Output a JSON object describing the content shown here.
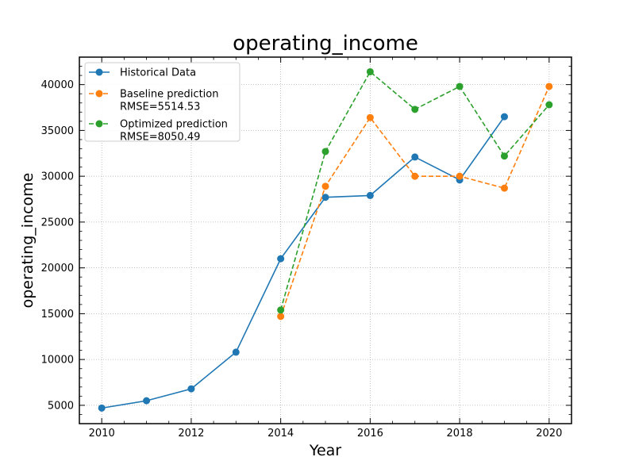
{
  "chart_data": {
    "type": "line",
    "title": "operating_income",
    "xlabel": "Year",
    "ylabel": "operating_income",
    "xlim": [
      2009.5,
      2020.5
    ],
    "ylim": [
      3000,
      43000
    ],
    "xticks": [
      2010,
      2012,
      2014,
      2016,
      2018,
      2020
    ],
    "yticks": [
      5000,
      10000,
      15000,
      20000,
      25000,
      30000,
      35000,
      40000
    ],
    "grid": true,
    "legend_position": "top-left",
    "series": [
      {
        "name": "Historical Data",
        "style": "solid",
        "color": "#1f77b4",
        "x": [
          2010,
          2011,
          2012,
          2013,
          2014,
          2015,
          2016,
          2017,
          2018,
          2019
        ],
        "y": [
          4700,
          5500,
          6800,
          10800,
          21000,
          27700,
          27900,
          32100,
          29600,
          36500
        ]
      },
      {
        "name": "Baseline prediction",
        "legend_lines": [
          "Baseline prediction",
          "RMSE=5514.53"
        ],
        "style": "dashed",
        "color": "#ff7f0e",
        "x": [
          2014,
          2015,
          2016,
          2017,
          2018,
          2019,
          2020
        ],
        "y": [
          14700,
          28900,
          36400,
          30000,
          30000,
          28700,
          39800
        ]
      },
      {
        "name": "Optimized prediction",
        "legend_lines": [
          "Optimized prediction",
          "RMSE=8050.49"
        ],
        "style": "dashed",
        "color": "#2ca02c",
        "x": [
          2014,
          2015,
          2016,
          2017,
          2018,
          2019,
          2020
        ],
        "y": [
          15400,
          32700,
          41400,
          37300,
          39800,
          32200,
          37800
        ]
      }
    ]
  }
}
